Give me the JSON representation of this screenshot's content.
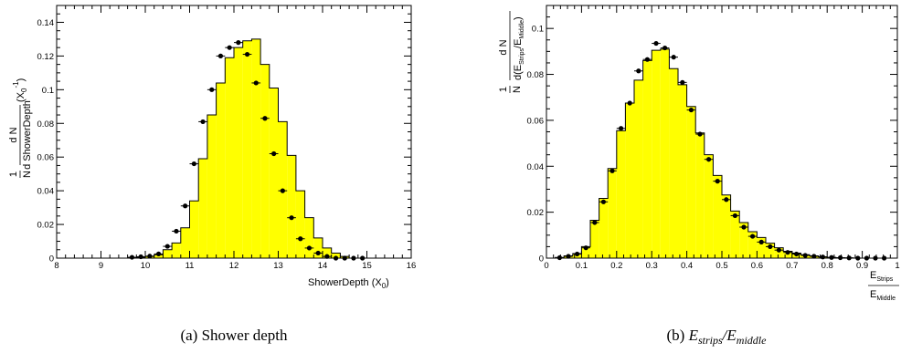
{
  "chart_data": [
    {
      "type": "histogram",
      "caption": "(a)  Shower depth",
      "xlabel": "ShowerDepth (X",
      "xlabel_sub": "0",
      "xlabel_close": ")",
      "ylabel_num": "1",
      "ylabel_den": "N",
      "ylabel_frac_num": "d N",
      "ylabel_frac_den": "d ShowerDepth",
      "ylabel_unit": "(X",
      "ylabel_unit_sub": "0",
      "ylabel_unit_sup": "-1",
      "ylabel_unit_close": ")",
      "xlim": [
        8,
        16
      ],
      "ylim": [
        0,
        0.15
      ],
      "xticks": [
        8,
        9,
        10,
        11,
        12,
        13,
        14,
        15,
        16
      ],
      "yticks": [
        0,
        0.02,
        0.04,
        0.06,
        0.08,
        0.1,
        0.12,
        0.14
      ],
      "ytick_labels": [
        "0",
        "0.02",
        "0.04",
        "0.06",
        "0.08",
        "0.1",
        "0.12",
        "0.14"
      ],
      "bin_edges": [
        9.6,
        9.8,
        10.0,
        10.2,
        10.4,
        10.6,
        10.8,
        11.0,
        11.2,
        11.4,
        11.6,
        11.8,
        12.0,
        12.2,
        12.4,
        12.6,
        12.8,
        13.0,
        13.2,
        13.4,
        13.6,
        13.8,
        14.0,
        14.2,
        14.4,
        14.6,
        14.8,
        15.0
      ],
      "series": [
        {
          "kind": "filled-histogram",
          "color": "#ffff00",
          "values": [
            0.0,
            0.0005,
            0.001,
            0.002,
            0.005,
            0.009,
            0.018,
            0.034,
            0.059,
            0.085,
            0.104,
            0.119,
            0.125,
            0.129,
            0.13,
            0.115,
            0.101,
            0.081,
            0.061,
            0.04,
            0.024,
            0.012,
            0.006,
            0.003,
            0.001,
            0.0,
            0.0
          ]
        },
        {
          "kind": "points",
          "x": [
            9.7,
            9.9,
            10.1,
            10.3,
            10.5,
            10.7,
            10.9,
            11.1,
            11.3,
            11.5,
            11.7,
            11.9,
            12.1,
            12.3,
            12.5,
            12.7,
            12.9,
            13.1,
            13.3,
            13.5,
            13.7,
            13.9,
            14.1,
            14.3,
            14.5,
            14.7,
            14.9
          ],
          "y": [
            0.0005,
            0.0008,
            0.0012,
            0.0025,
            0.007,
            0.016,
            0.031,
            0.056,
            0.081,
            0.1,
            0.12,
            0.125,
            0.128,
            0.121,
            0.104,
            0.083,
            0.062,
            0.04,
            0.024,
            0.0115,
            0.006,
            0.003,
            0.001,
            0.0,
            0.0,
            0.0,
            0.0
          ]
        }
      ]
    },
    {
      "type": "histogram",
      "caption_prefix": "(b)  ",
      "caption_e1": "E",
      "caption_s1": "strips",
      "caption_slash": "/",
      "caption_e2": "E",
      "caption_s2": "middle",
      "xlabel_num": "E",
      "xlabel_num_sub": "Strips",
      "xlabel_den": "E",
      "xlabel_den_sub": "Middle",
      "ylabel_num": "1",
      "ylabel_den": "N",
      "ylabel_frac_num": "d N",
      "ylabel_frac_den_prefix": "d(E",
      "ylabel_frac_den_sub1": "Strips",
      "ylabel_frac_den_mid": "/E",
      "ylabel_frac_den_sub2": "Middle",
      "ylabel_frac_den_close": ")",
      "xlim": [
        0,
        1
      ],
      "ylim": [
        0,
        0.11
      ],
      "xticks": [
        0,
        0.1,
        0.2,
        0.3,
        0.4,
        0.5,
        0.6,
        0.7,
        0.8,
        0.9,
        1
      ],
      "xtick_labels": [
        "0",
        "0.1",
        "0.2",
        "0.3",
        "0.4",
        "0.5",
        "0.6",
        "0.7",
        "0.8",
        "0.9",
        "1"
      ],
      "yticks": [
        0,
        0.02,
        0.04,
        0.06,
        0.08,
        0.1
      ],
      "ytick_labels": [
        "0",
        "0.02",
        "0.04",
        "0.06",
        "0.08",
        "0.1"
      ],
      "bin_edges": [
        0.0,
        0.025,
        0.05,
        0.075,
        0.1,
        0.125,
        0.15,
        0.175,
        0.2,
        0.225,
        0.25,
        0.275,
        0.3,
        0.325,
        0.35,
        0.375,
        0.4,
        0.425,
        0.45,
        0.475,
        0.5,
        0.525,
        0.55,
        0.575,
        0.6,
        0.625,
        0.65,
        0.675,
        0.7,
        0.725,
        0.75,
        0.775,
        0.8,
        0.825,
        0.85,
        0.875,
        0.9,
        0.925,
        0.95,
        0.975,
        1.0
      ],
      "series": [
        {
          "kind": "filled-histogram",
          "color": "#ffff00",
          "values": [
            0.0,
            0.0003,
            0.001,
            0.002,
            0.005,
            0.0165,
            0.026,
            0.039,
            0.0555,
            0.0675,
            0.0775,
            0.086,
            0.0905,
            0.091,
            0.0825,
            0.0755,
            0.066,
            0.0545,
            0.045,
            0.036,
            0.0275,
            0.0205,
            0.0155,
            0.0115,
            0.009,
            0.0065,
            0.0045,
            0.003,
            0.0022,
            0.0015,
            0.001,
            0.0006,
            0.0003,
            0.0002,
            0.0001,
            0.0,
            0.0,
            0.0,
            0.0,
            0.0
          ]
        },
        {
          "kind": "points",
          "x": [
            0.0375,
            0.0625,
            0.0875,
            0.1125,
            0.1375,
            0.1625,
            0.1875,
            0.2125,
            0.2375,
            0.2625,
            0.2875,
            0.3125,
            0.3375,
            0.3625,
            0.3875,
            0.4125,
            0.4375,
            0.4625,
            0.4875,
            0.5125,
            0.5375,
            0.5625,
            0.5875,
            0.6125,
            0.6375,
            0.6625,
            0.6875,
            0.7125,
            0.7375,
            0.7625,
            0.7875,
            0.8125,
            0.8375,
            0.8625,
            0.8875,
            0.9125,
            0.9375,
            0.9625
          ],
          "y": [
            0.0002,
            0.0008,
            0.0018,
            0.0045,
            0.0155,
            0.0245,
            0.038,
            0.0565,
            0.0675,
            0.0815,
            0.0865,
            0.0935,
            0.0915,
            0.0875,
            0.0765,
            0.0645,
            0.054,
            0.043,
            0.0335,
            0.0255,
            0.0185,
            0.0135,
            0.0095,
            0.007,
            0.005,
            0.0035,
            0.0025,
            0.0018,
            0.0012,
            0.0008,
            0.0005,
            0.0003,
            0.0002,
            0.0001,
            0.0,
            0.0,
            0.0,
            0.0
          ]
        }
      ]
    }
  ]
}
